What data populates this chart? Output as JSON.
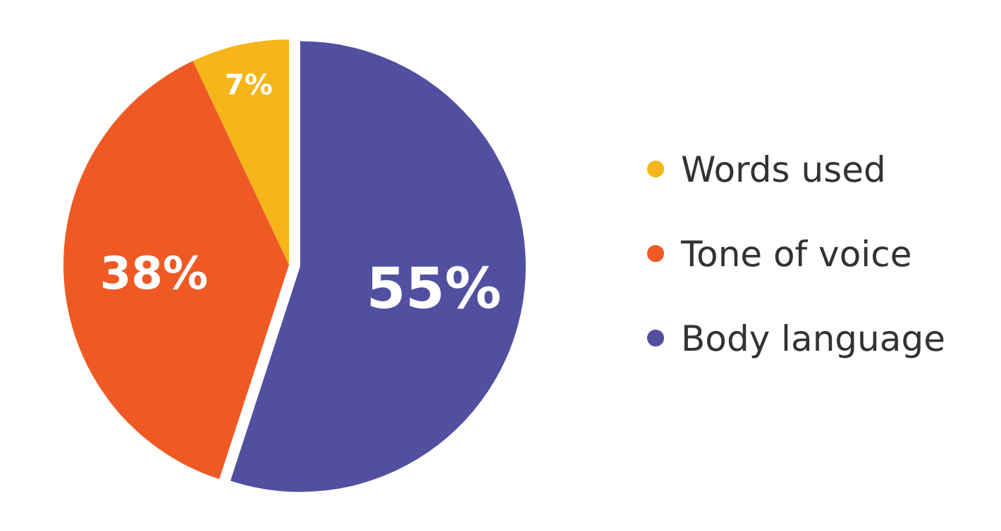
{
  "chart_data": {
    "type": "pie",
    "categories": [
      "Words used",
      "Tone of voice",
      "Body language"
    ],
    "values": [
      7,
      38,
      55
    ],
    "colors": [
      "#f6b619",
      "#ef5a24",
      "#5150a0"
    ],
    "value_labels": [
      "7%",
      "38%",
      "55%"
    ],
    "legend": "right"
  }
}
